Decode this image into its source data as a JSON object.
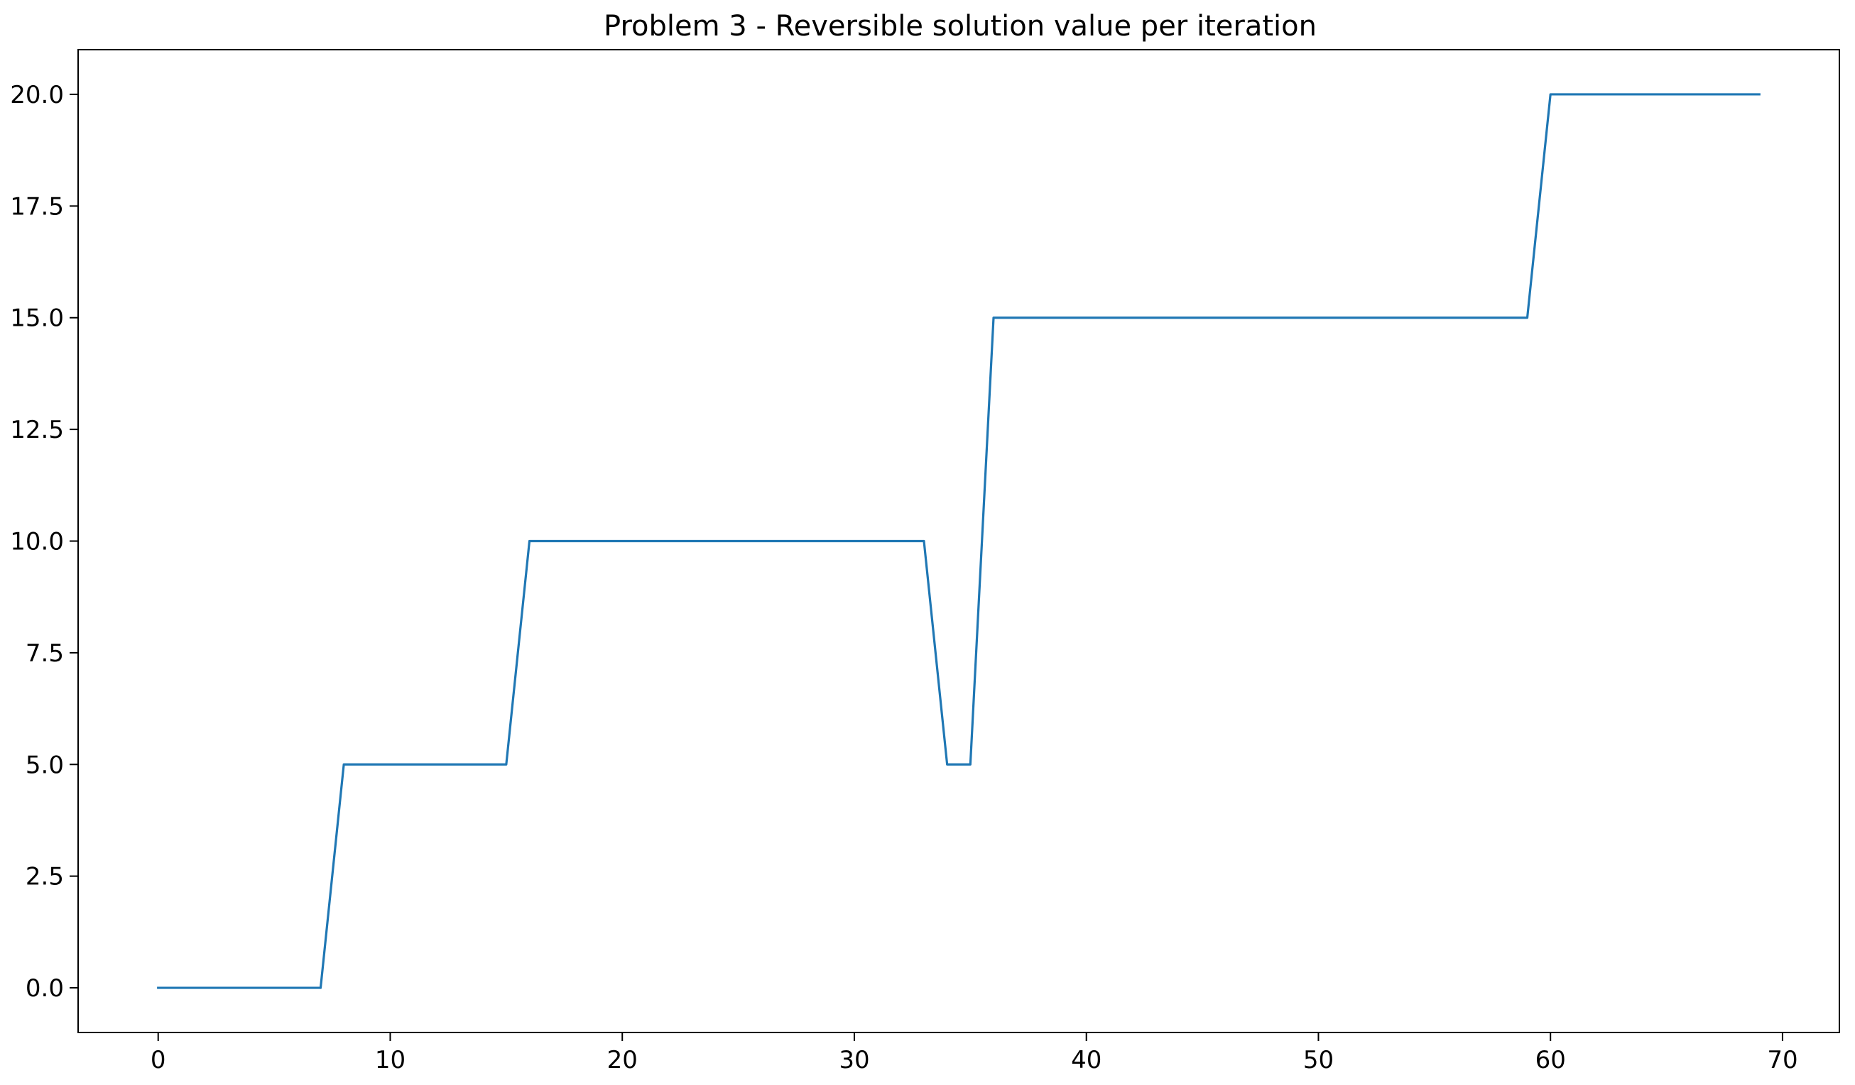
{
  "chart_data": {
    "type": "line",
    "title": "Problem 3 - Reversible solution value per iteration",
    "xlabel": "",
    "ylabel": "",
    "xlim": [
      -3.45,
      72.45
    ],
    "ylim": [
      -1,
      21
    ],
    "x_ticks": [
      0,
      10,
      20,
      30,
      40,
      50,
      60,
      70
    ],
    "x_tick_labels": [
      "0",
      "10",
      "20",
      "30",
      "40",
      "50",
      "60",
      "70"
    ],
    "y_ticks": [
      0,
      2.5,
      5,
      7.5,
      10,
      12.5,
      15,
      17.5,
      20
    ],
    "y_tick_labels": [
      "0.0",
      "2.5",
      "5.0",
      "7.5",
      "10.0",
      "12.5",
      "15.0",
      "17.5",
      "20.0"
    ],
    "grid": false,
    "series": [
      {
        "color": "#1f77b4",
        "x": [
          0,
          1,
          2,
          3,
          4,
          5,
          6,
          7,
          8,
          9,
          10,
          11,
          12,
          13,
          14,
          15,
          16,
          17,
          18,
          19,
          20,
          21,
          22,
          23,
          24,
          25,
          26,
          27,
          28,
          29,
          30,
          31,
          32,
          33,
          34,
          35,
          36,
          37,
          38,
          39,
          40,
          41,
          42,
          43,
          44,
          45,
          46,
          47,
          48,
          49,
          50,
          51,
          52,
          53,
          54,
          55,
          56,
          57,
          58,
          59,
          60,
          61,
          62,
          63,
          64,
          65,
          66,
          67,
          68,
          69
        ],
        "values": [
          0,
          0,
          0,
          0,
          0,
          0,
          0,
          0,
          5,
          5,
          5,
          5,
          5,
          5,
          5,
          5,
          10,
          10,
          10,
          10,
          10,
          10,
          10,
          10,
          10,
          10,
          10,
          10,
          10,
          10,
          10,
          10,
          10,
          10,
          5,
          5,
          15,
          15,
          15,
          15,
          15,
          15,
          15,
          15,
          15,
          15,
          15,
          15,
          15,
          15,
          15,
          15,
          15,
          15,
          15,
          15,
          15,
          15,
          15,
          15,
          20,
          20,
          20,
          20,
          20,
          20,
          20,
          20,
          20,
          20
        ]
      }
    ]
  }
}
